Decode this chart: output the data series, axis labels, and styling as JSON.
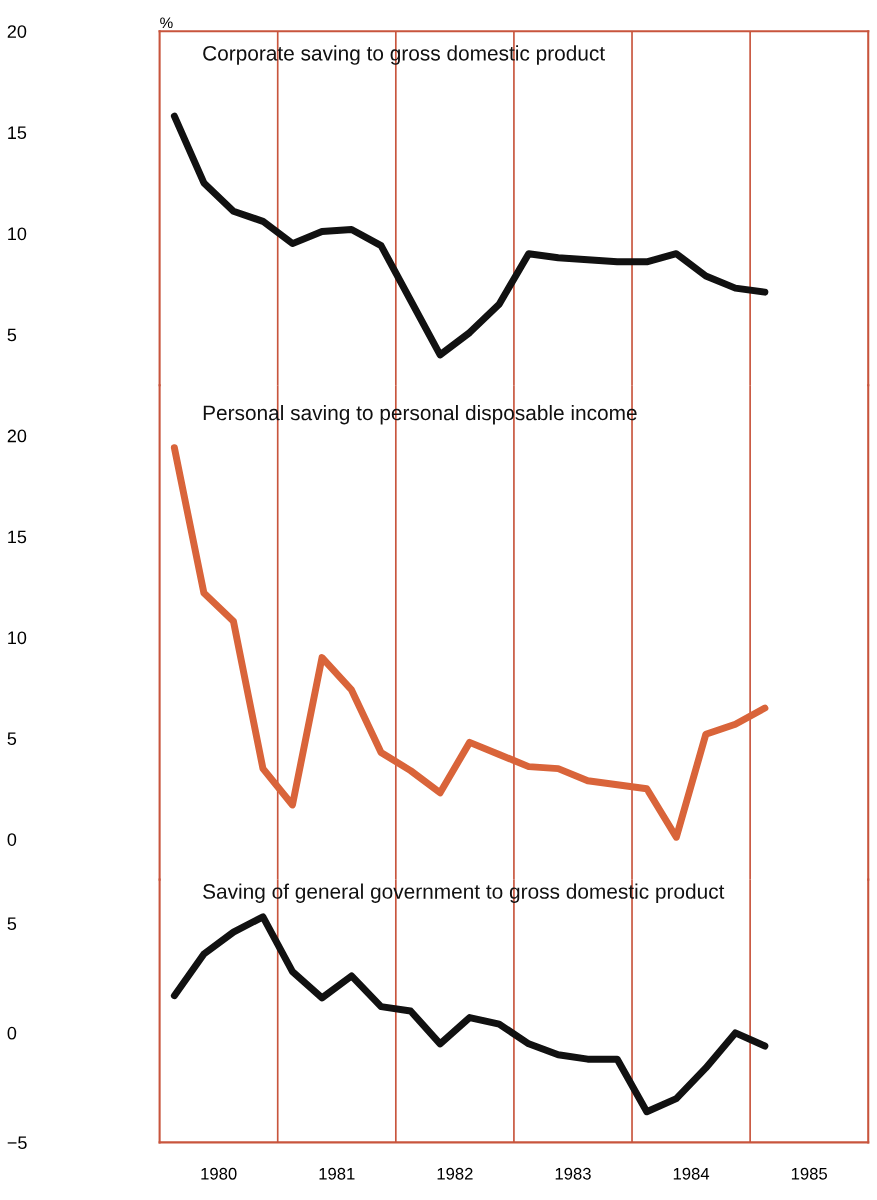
{
  "chart_data": [
    {
      "type": "line",
      "ylabel": "%",
      "x": [
        1980.125,
        1980.375,
        1980.625,
        1980.875,
        1981.125,
        1981.375,
        1981.625,
        1981.875,
        1982.125,
        1982.375,
        1982.625,
        1982.875,
        1983.125,
        1983.375,
        1983.625,
        1983.875,
        1984.125,
        1984.375,
        1984.625,
        1984.875,
        1985.125
      ],
      "series": [
        {
          "name": "Corporate saving to gross domestic product",
          "color": "#111111",
          "values": [
            15.8,
            12.5,
            11.1,
            10.6,
            9.5,
            10.1,
            10.2,
            9.4,
            6.7,
            4.0,
            5.1,
            6.5,
            9.0,
            8.8,
            8.7,
            8.6,
            8.6,
            9.0,
            7.9,
            7.3,
            7.1
          ]
        }
      ],
      "xlim": [
        1980,
        1986
      ],
      "ylim": [
        2.5,
        20
      ],
      "yticks": [
        5,
        10,
        15,
        20
      ],
      "tick_labels": "y",
      "grid": false,
      "legend": false,
      "ref_lines": [
        {
          "axis": "x",
          "value": 1981,
          "color": "#c8553d"
        },
        {
          "axis": "x",
          "value": 1982,
          "color": "#c8553d"
        },
        {
          "axis": "x",
          "value": 1983,
          "color": "#c8553d"
        },
        {
          "axis": "x",
          "value": 1984,
          "color": "#c8553d"
        },
        {
          "axis": "x",
          "value": 1985,
          "color": "#c8553d"
        }
      ]
    },
    {
      "type": "line",
      "x": [
        1980.125,
        1980.375,
        1980.625,
        1980.875,
        1981.125,
        1981.375,
        1981.625,
        1981.875,
        1982.125,
        1982.375,
        1982.625,
        1982.875,
        1983.125,
        1983.375,
        1983.625,
        1983.875,
        1984.125,
        1984.375,
        1984.625,
        1984.875,
        1985.125
      ],
      "series": [
        {
          "name": "Personal saving to personal disposable income",
          "color": "#d9643a",
          "values": [
            19.4,
            12.2,
            10.8,
            3.5,
            1.7,
            9.0,
            7.4,
            4.3,
            3.4,
            2.3,
            4.8,
            4.2,
            3.6,
            3.5,
            2.9,
            2.7,
            2.5,
            0.1,
            5.2,
            5.7,
            6.5
          ]
        }
      ],
      "xlim": [
        1980,
        1986
      ],
      "ylim": [
        -2,
        22.5
      ],
      "yticks": [
        0,
        5,
        10,
        15,
        20
      ],
      "tick_labels": "y",
      "grid": false,
      "legend": false,
      "ref_lines": [
        {
          "axis": "x",
          "value": 1981,
          "color": "#c8553d"
        },
        {
          "axis": "x",
          "value": 1982,
          "color": "#c8553d"
        },
        {
          "axis": "x",
          "value": 1983,
          "color": "#c8553d"
        },
        {
          "axis": "x",
          "value": 1984,
          "color": "#c8553d"
        },
        {
          "axis": "x",
          "value": 1985,
          "color": "#c8553d"
        }
      ]
    },
    {
      "type": "line",
      "x": [
        1980.125,
        1980.375,
        1980.625,
        1980.875,
        1981.125,
        1981.375,
        1981.625,
        1981.875,
        1982.125,
        1982.375,
        1982.625,
        1982.875,
        1983.125,
        1983.375,
        1983.625,
        1983.875,
        1984.125,
        1984.375,
        1984.625,
        1984.875,
        1985.125
      ],
      "series": [
        {
          "name": "Saving of general government to gross domestic product",
          "color": "#111111",
          "values": [
            1.7,
            3.6,
            4.6,
            5.3,
            2.8,
            1.6,
            2.6,
            1.2,
            1.0,
            -0.5,
            0.7,
            0.4,
            -0.5,
            -1.0,
            -1.2,
            -1.2,
            -3.6,
            -3.0,
            -1.6,
            0.0,
            -0.6
          ]
        }
      ],
      "xlim": [
        1980,
        1986
      ],
      "ylim": [
        -5,
        7
      ],
      "yticks": [
        {
          "value": -5,
          "label": "−5"
        },
        0,
        5
      ],
      "xticks": [
        {
          "value": 1980.5,
          "label": "1980"
        },
        {
          "value": 1981.5,
          "label": "1981"
        },
        {
          "value": 1982.5,
          "label": "1982"
        },
        {
          "value": 1983.5,
          "label": "1983"
        },
        {
          "value": 1984.5,
          "label": "1984"
        },
        {
          "value": 1985.5,
          "label": "1985"
        }
      ],
      "grid": false,
      "legend": false,
      "ref_lines": [
        {
          "axis": "x",
          "value": 1981,
          "color": "#c8553d"
        },
        {
          "axis": "x",
          "value": 1982,
          "color": "#c8553d"
        },
        {
          "axis": "x",
          "value": 1983,
          "color": "#c8553d"
        },
        {
          "axis": "x",
          "value": 1984,
          "color": "#c8553d"
        },
        {
          "axis": "x",
          "value": 1985,
          "color": "#c8553d"
        }
      ]
    }
  ]
}
